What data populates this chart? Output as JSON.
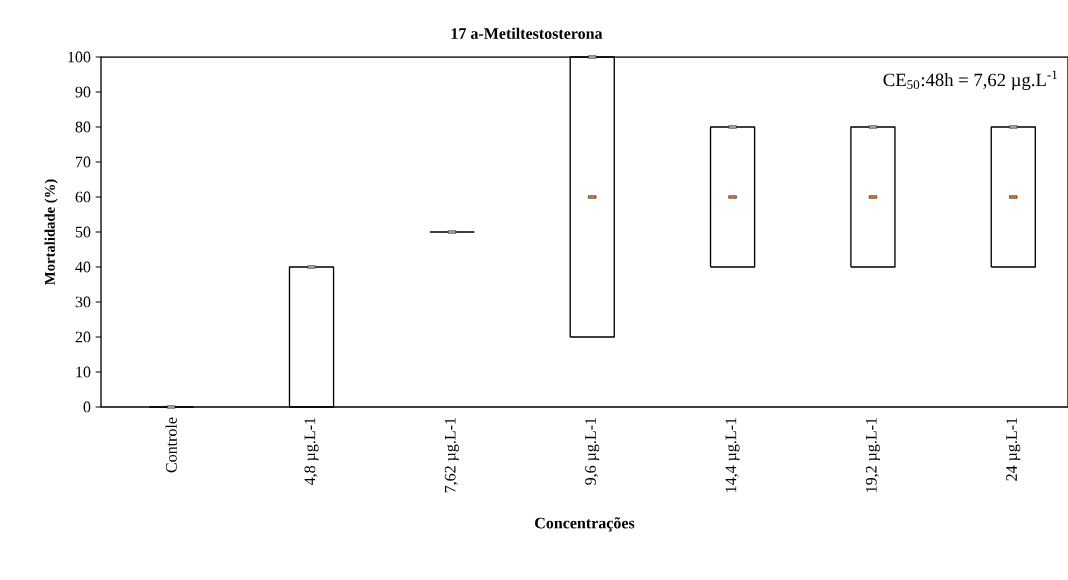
{
  "chart_data": {
    "type": "box",
    "title": "17 a-Metiltestosterona",
    "xlabel": "Concentrações",
    "ylabel": "Mortalidade (%)",
    "categories": [
      "Controle",
      "4,8 µg.L-1",
      "7,62 µg.L-1",
      "9,6 µg.L-1",
      "14,4 µg.L-1",
      "19,2 µg.L-1",
      "24 µg.L-1"
    ],
    "boxes": [
      {
        "low": 0,
        "q1": 0,
        "median": 0,
        "q3": 0,
        "high": 0
      },
      {
        "low": 0,
        "q1": 0,
        "median": 40,
        "q3": 40,
        "high": 40
      },
      {
        "low": 50,
        "q1": 50,
        "median": 50,
        "q3": 50,
        "high": 50
      },
      {
        "low": 20,
        "q1": 20,
        "median": 100,
        "q3": 100,
        "high": 100,
        "mean": 60
      },
      {
        "low": 40,
        "q1": 40,
        "median": 80,
        "q3": 80,
        "high": 80,
        "mean": 60
      },
      {
        "low": 40,
        "q1": 40,
        "median": 80,
        "q3": 80,
        "high": 80,
        "mean": 60
      },
      {
        "low": 40,
        "q1": 40,
        "median": 80,
        "q3": 80,
        "high": 80,
        "mean": 60
      }
    ],
    "ylim": [
      0,
      100
    ],
    "yticks": [
      0,
      10,
      20,
      30,
      40,
      50,
      60,
      70,
      80,
      90,
      100
    ],
    "annotations": [
      "CE$_{50}$:48h = 7,62 µg.L$^{-1}$"
    ],
    "grid": false
  }
}
